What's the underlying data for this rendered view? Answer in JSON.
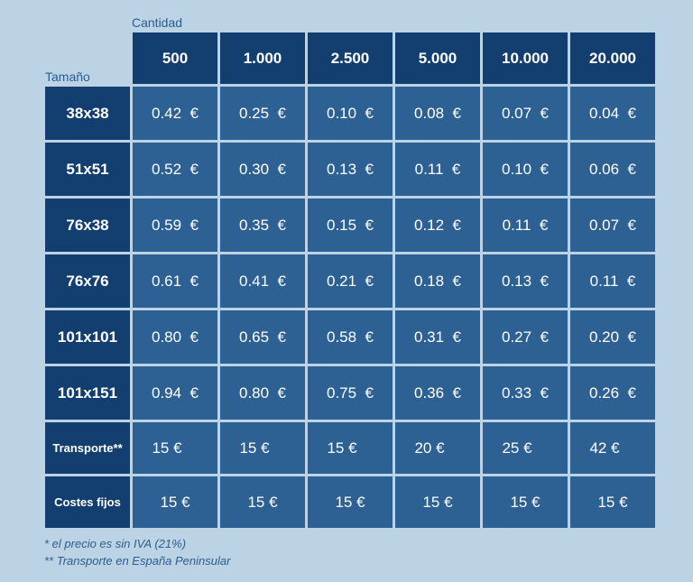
{
  "labels": {
    "cantidad": "Cantidad",
    "tamano": "Tamaño"
  },
  "columns": [
    "500",
    "1.000",
    "2.500",
    "5.000",
    "10.000",
    "20.000"
  ],
  "rows": [
    {
      "label": "38x38",
      "values": [
        "0.42  €",
        "0.25  €",
        "0.10  €",
        "0.08  €",
        "0.07  €",
        "0.04  €"
      ]
    },
    {
      "label": "51x51",
      "values": [
        "0.52  €",
        "0.30  €",
        "0.13  €",
        "0.11  €",
        "0.10  €",
        "0.06  €"
      ]
    },
    {
      "label": "76x38",
      "values": [
        "0.59  €",
        "0.35  €",
        "0.15  €",
        "0.12  €",
        "0.11  €",
        "0.07  €"
      ]
    },
    {
      "label": "76x76",
      "values": [
        "0.61  €",
        "0.41  €",
        "0.21  €",
        "0.18  €",
        "0.13  €",
        "0.11  €"
      ]
    },
    {
      "label": "101x101",
      "values": [
        "0.80  €",
        "0.65  €",
        "0.58  €",
        "0.31  €",
        "0.27  €",
        "0.20  €"
      ]
    },
    {
      "label": "101x151",
      "values": [
        "0.94  €",
        "0.80  €",
        "0.75  €",
        "0.36  €",
        "0.33  €",
        "0.26  €"
      ]
    },
    {
      "label": "Transporte**",
      "small": true,
      "plain": true,
      "values": [
        "15 €",
        "15 €",
        "15 €",
        "20 €",
        "25 €",
        "42 €"
      ]
    },
    {
      "label": "Costes fijos",
      "small": true,
      "plain": false,
      "values": [
        "15 €",
        "15 €",
        "15 €",
        "15 €",
        "15 €",
        "15 €"
      ]
    }
  ],
  "notes": [
    "* el precio es sin IVA (21%)",
    "** Transporte en España Peninsular"
  ]
}
